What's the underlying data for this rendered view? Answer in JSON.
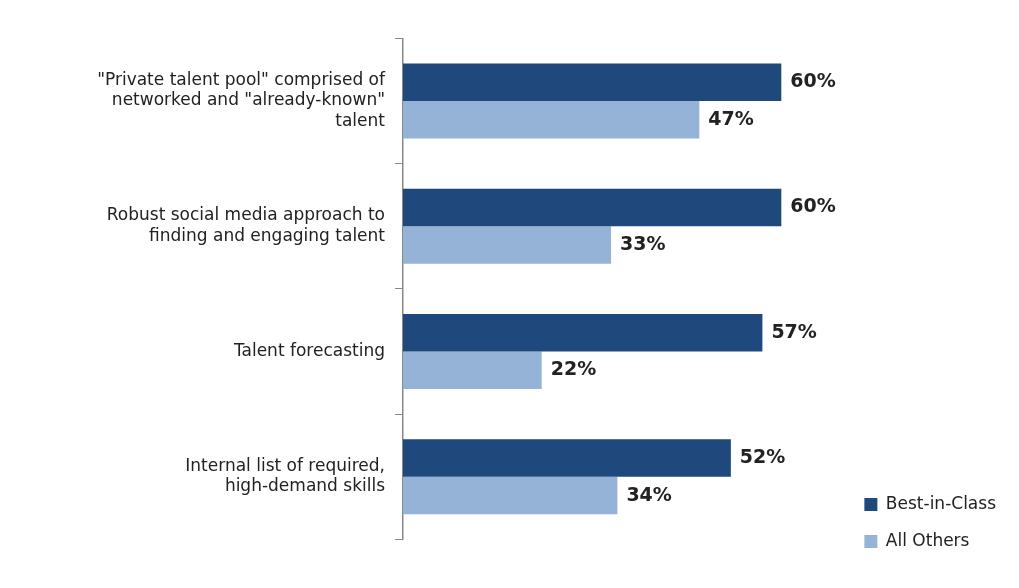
{
  "chart_data": {
    "type": "bar",
    "orientation": "horizontal",
    "categories": [
      "\"Private talent pool\" comprised of networked and \"already-known\" talent",
      "Robust social media approach to finding and engaging talent",
      "Talent forecasting",
      "Internal list of required, high-demand skills"
    ],
    "series": [
      {
        "name": "Best-in-Class",
        "color": "#1f497d",
        "values": [
          60,
          60,
          57,
          52
        ],
        "value_labels": [
          "60%",
          "60%",
          "57%",
          "52%"
        ]
      },
      {
        "name": "All Others",
        "color": "#95b3d7",
        "values": [
          47,
          33,
          22,
          34
        ],
        "value_labels": [
          "47%",
          "33%",
          "22%",
          "34%"
        ]
      }
    ],
    "tick_labels": "y",
    "legend": "bottom right",
    "grid": false
  }
}
